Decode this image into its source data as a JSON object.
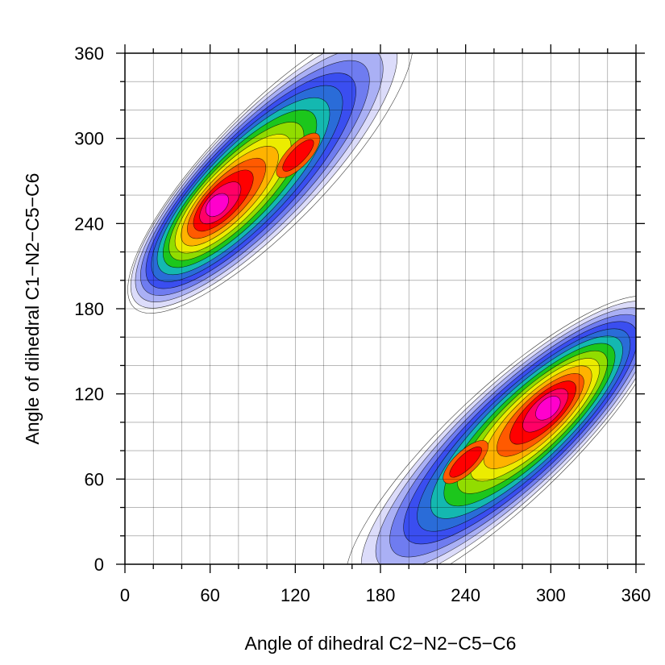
{
  "chart_data": {
    "type": "heatmap",
    "subtype": "filled-contour density",
    "title": "",
    "xlabel": "Angle of dihedral C2−N2−C5−C6",
    "ylabel": "Angle of dihedral C1−N2−C5−C6",
    "xlim": [
      0,
      360
    ],
    "ylim": [
      0,
      360
    ],
    "xticks": [
      "0",
      "60",
      "120",
      "180",
      "240",
      "300",
      "360"
    ],
    "yticks": [
      "0",
      "60",
      "120",
      "180",
      "240",
      "300",
      "360"
    ],
    "grid": true,
    "colormap": [
      "#ffffff",
      "#dcdcfa",
      "#aab0f5",
      "#6f7cf0",
      "#3a4ef0",
      "#2a6cd8",
      "#14b8b0",
      "#1cc61c",
      "#92dc00",
      "#ecec00",
      "#ffb300",
      "#ff5a00",
      "#ff0000",
      "#ff0066",
      "#ff00cc"
    ],
    "regions": [
      {
        "name": "",
        "peak": [
          65,
          253
        ],
        "secondary_peak": [
          122,
          288
        ],
        "ridge_from": [
          25,
          200
        ],
        "ridge_to": [
          180,
          360
        ]
      },
      {
        "name": "",
        "peak": [
          298,
          110
        ],
        "secondary_peak": [
          240,
          72
        ],
        "ridge_from": [
          180,
          0
        ],
        "ridge_to": [
          355,
          165
        ]
      }
    ]
  }
}
